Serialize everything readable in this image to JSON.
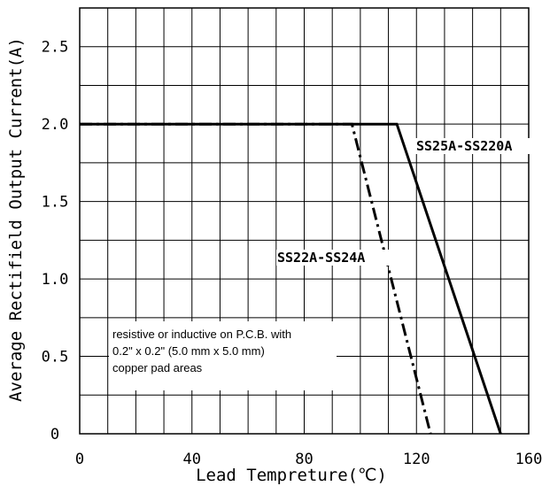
{
  "chart_data": {
    "type": "line",
    "title": "",
    "xlabel": "Lead Tempreture(℃)",
    "ylabel": "Average Rectifield Output Current(A)",
    "xlim": [
      0,
      160
    ],
    "ylim": [
      0,
      2.75
    ],
    "xticks": [
      0,
      40,
      80,
      120,
      160
    ],
    "xtick_labels": [
      "0",
      "40",
      "80",
      "120",
      "160"
    ],
    "yticks": [
      0,
      0.5,
      1.0,
      1.5,
      2.0,
      2.5
    ],
    "ytick_labels": [
      "0",
      "0.5",
      "1.0",
      "1.5",
      "2.0",
      "2.5"
    ],
    "grid": true,
    "x_grid_step": 10,
    "y_grid_step": 0.25,
    "series": [
      {
        "name": "SS22A-SS24A",
        "style": "dash-dot",
        "x": [
          0,
          97,
          125
        ],
        "y": [
          2.0,
          2.0,
          0
        ]
      },
      {
        "name": "SS25A-SS220A",
        "style": "solid",
        "x": [
          0,
          113,
          150
        ],
        "y": [
          2.0,
          2.0,
          0
        ]
      }
    ],
    "annotation": {
      "lines": [
        "resistive or inductive on P.C.B. with",
        "0.2\" x 0.2\" (5.0 mm x 5.0 mm)",
        "copper pad areas"
      ]
    },
    "colors": {
      "line": "#000000",
      "grid": "#000000",
      "background": "#ffffff"
    }
  }
}
